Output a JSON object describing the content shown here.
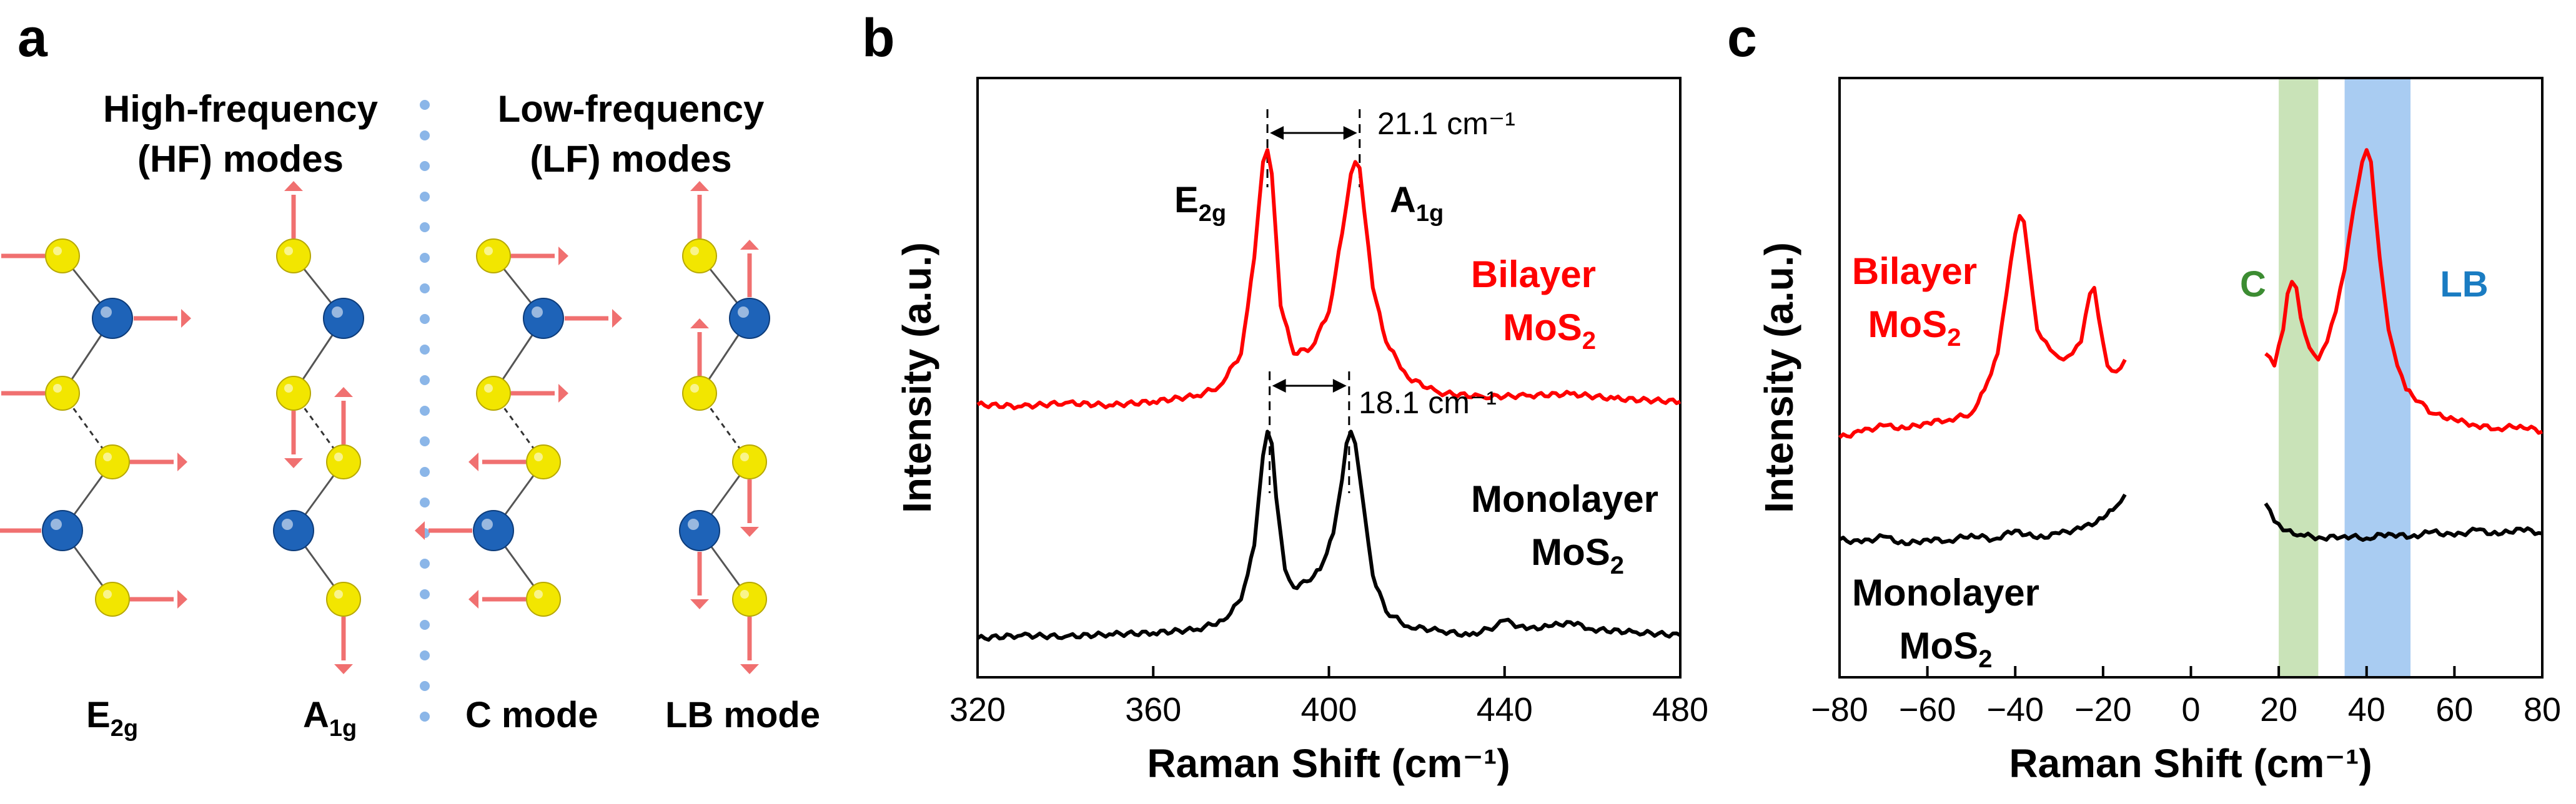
{
  "panel_labels": {
    "a": "a",
    "b": "b",
    "c": "c"
  },
  "panel_a": {
    "hf_title_line1": "High-frequency",
    "hf_title_line2": "(HF) modes",
    "lf_title_line1": "Low-frequency",
    "lf_title_line2": "(LF) modes",
    "mode_e2g_base": "E",
    "mode_e2g_sub": "2g",
    "mode_a1g_base": "A",
    "mode_a1g_sub": "1g",
    "mode_c": "C mode",
    "mode_lb": "LB mode",
    "colors": {
      "sulfur": "#f2e600",
      "molybdenum": "#1e63b8",
      "arrow": "#f07070",
      "divider": "#8bb6e8"
    }
  },
  "chart_data": [
    {
      "id": "b",
      "type": "line",
      "xlabel": "Raman Shift (cm⁻¹)",
      "ylabel": "Intensity (a.u.)",
      "xlim": [
        320,
        480
      ],
      "ylim": [
        0,
        1
      ],
      "xticks": [
        320,
        360,
        400,
        440,
        480
      ],
      "tick_labels": [
        "320",
        "360",
        "400",
        "440",
        "480"
      ],
      "grid": false,
      "series": [
        {
          "name": "Bilayer MoS2",
          "label_line1": "Bilayer",
          "label_line2_base": "MoS",
          "label_line2_sub": "2",
          "color": "#ff0000",
          "x": [
            320,
            330,
            340,
            350,
            360,
            370,
            375,
            380,
            383,
            385,
            386,
            387,
            389,
            392,
            396,
            400,
            403,
            405,
            406,
            407,
            408,
            410,
            413,
            418,
            425,
            435,
            445,
            455,
            465,
            480
          ],
          "y": [
            0.455,
            0.452,
            0.458,
            0.454,
            0.46,
            0.47,
            0.485,
            0.54,
            0.7,
            0.86,
            0.88,
            0.84,
            0.62,
            0.54,
            0.55,
            0.61,
            0.74,
            0.84,
            0.86,
            0.85,
            0.78,
            0.65,
            0.56,
            0.5,
            0.475,
            0.468,
            0.47,
            0.473,
            0.465,
            0.46
          ]
        },
        {
          "name": "Monolayer MoS2",
          "label_line1": "Monolayer",
          "label_line2_base": "MoS",
          "label_line2_sub": "2",
          "color": "#000000",
          "x": [
            320,
            330,
            340,
            350,
            360,
            370,
            376,
            380,
            383,
            385,
            386,
            387,
            388,
            390,
            392,
            395,
            398,
            401,
            403,
            404,
            405,
            406,
            408,
            410,
            413,
            418,
            425,
            432,
            438,
            440,
            445,
            450,
            455,
            460,
            470,
            480
          ],
          "y": [
            0.065,
            0.07,
            0.068,
            0.072,
            0.074,
            0.08,
            0.095,
            0.13,
            0.22,
            0.37,
            0.41,
            0.39,
            0.3,
            0.18,
            0.15,
            0.16,
            0.18,
            0.24,
            0.33,
            0.39,
            0.41,
            0.39,
            0.28,
            0.17,
            0.11,
            0.085,
            0.078,
            0.07,
            0.085,
            0.095,
            0.08,
            0.085,
            0.092,
            0.08,
            0.075,
            0.07
          ]
        }
      ],
      "annotations": {
        "bilayer_spacing": "21.1 cm⁻¹",
        "bilayer_lines": [
          386,
          407
        ],
        "monolayer_spacing": "18.1 cm⁻¹",
        "monolayer_lines": [
          386.5,
          404.6
        ],
        "peak_e2g_base": "E",
        "peak_e2g_sub": "2g",
        "peak_a1g_base": "A",
        "peak_a1g_sub": "1g"
      }
    },
    {
      "id": "c",
      "type": "line",
      "xlabel": "Raman Shift (cm⁻¹)",
      "ylabel": "Intensity (a.u.)",
      "xlim": [
        -80,
        80
      ],
      "ylim": [
        0,
        1
      ],
      "xticks": [
        -80,
        -60,
        -40,
        -20,
        0,
        20,
        40,
        60,
        80
      ],
      "tick_labels": [
        "−80",
        "−60",
        "−40",
        "−20",
        "0",
        "20",
        "40",
        "60",
        "80"
      ],
      "grid": false,
      "shaded_bands": [
        {
          "label": "C",
          "from": 20,
          "to": 29,
          "color": "#c9e3b8",
          "label_color": "#3c8c32"
        },
        {
          "label": "LB",
          "from": 35,
          "to": 50,
          "color": "#a9ccf2",
          "label_color": "#1a7cc2"
        }
      ],
      "series": [
        {
          "name": "Bilayer MoS2",
          "label_line1": "Bilayer",
          "label_line2_base": "MoS",
          "label_line2_sub": "2",
          "color": "#ff0000",
          "segments": [
            {
              "x": [
                -80,
                -75,
                -70,
                -65,
                -60,
                -55,
                -50,
                -47,
                -44,
                -42,
                -40,
                -39,
                -38,
                -37,
                -35,
                -33,
                -31,
                -29,
                -27,
                -25,
                -23,
                -22,
                -21,
                -19,
                -17,
                -15
              ],
              "y": [
                0.4,
                0.41,
                0.42,
                0.415,
                0.425,
                0.43,
                0.44,
                0.48,
                0.54,
                0.64,
                0.74,
                0.77,
                0.76,
                0.7,
                0.58,
                0.56,
                0.54,
                0.53,
                0.54,
                0.56,
                0.64,
                0.65,
                0.6,
                0.52,
                0.51,
                0.53
              ]
            },
            {
              "x": [
                17,
                19,
                21,
                22,
                23,
                24,
                25,
                27,
                29,
                31,
                33,
                35,
                37,
                39,
                40,
                41,
                43,
                45,
                47,
                49,
                52,
                55,
                60,
                65,
                70,
                75,
                80
              ],
              "y": [
                0.54,
                0.52,
                0.58,
                0.64,
                0.66,
                0.65,
                0.6,
                0.55,
                0.53,
                0.56,
                0.61,
                0.68,
                0.78,
                0.86,
                0.88,
                0.86,
                0.7,
                0.58,
                0.52,
                0.48,
                0.46,
                0.44,
                0.43,
                0.42,
                0.415,
                0.42,
                0.41
              ]
            }
          ]
        },
        {
          "name": "Monolayer MoS2",
          "label_line1": "Monolayer",
          "label_line2_base": "MoS",
          "label_line2_sub": "2",
          "color": "#000000",
          "segments": [
            {
              "x": [
                -80,
                -75,
                -70,
                -65,
                -60,
                -55,
                -50,
                -45,
                -40,
                -35,
                -30,
                -25,
                -20,
                -17,
                -15
              ],
              "y": [
                0.23,
                0.225,
                0.235,
                0.222,
                0.23,
                0.228,
                0.238,
                0.23,
                0.245,
                0.232,
                0.24,
                0.248,
                0.265,
                0.285,
                0.305
              ]
            },
            {
              "x": [
                17,
                19,
                21,
                25,
                30,
                35,
                40,
                45,
                50,
                55,
                60,
                65,
                70,
                75,
                80
              ],
              "y": [
                0.29,
                0.26,
                0.245,
                0.238,
                0.232,
                0.236,
                0.232,
                0.24,
                0.234,
                0.243,
                0.236,
                0.246,
                0.238,
                0.248,
                0.24
              ]
            }
          ]
        }
      ],
      "labels": {
        "c_band": "C",
        "lb_band": "LB"
      }
    }
  ]
}
